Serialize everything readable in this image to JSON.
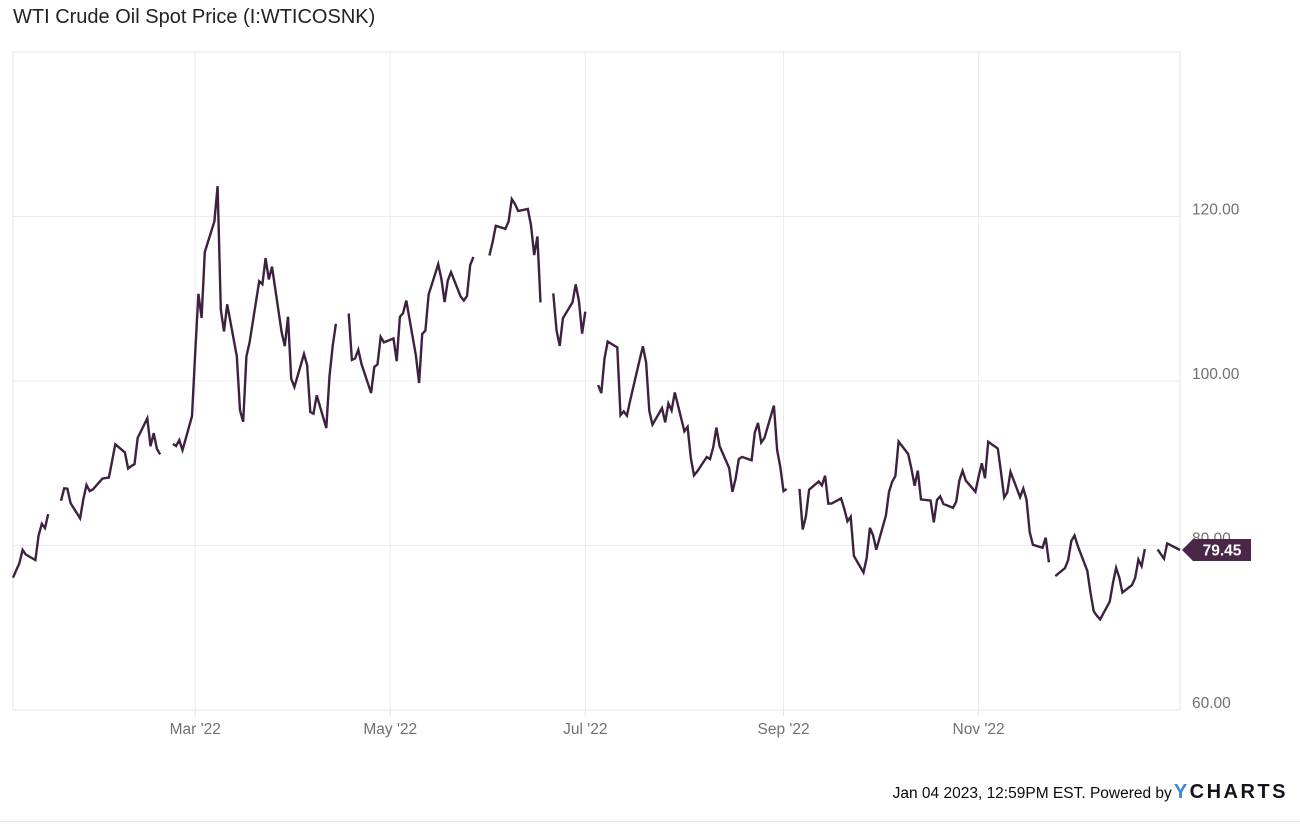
{
  "title": "WTI Crude Oil Spot Price (I:WTICOSNK)",
  "footer": {
    "timestamp": "Jan 04 2023, 12:59PM EST. ",
    "powered_by": "Powered by",
    "logo_y": "Y",
    "logo_charts": "CHARTS"
  },
  "colors": {
    "line": "#3e2140",
    "badge": "#4a2747",
    "badge_text": "#ffffff",
    "grid": "#ebebeb",
    "plot_border": "#e4e4e4",
    "axis_label": "#707070",
    "title_text": "#222222",
    "logo_blue": "#3d85e4",
    "logo_dark": "#14141e"
  },
  "chart_data": {
    "type": "line",
    "title": "WTI Crude Oil Spot Price (I:WTICOSNK)",
    "series_name": "WTI Crude Oil Spot Price",
    "xlabel": "",
    "ylabel": "",
    "x_start": "2022-01-03",
    "x_end": "2023-01-03",
    "ylim": [
      60,
      140
    ],
    "grid": true,
    "legend": "none",
    "last_price": 79.45,
    "last_price_label": "79.45",
    "yticks": [
      {
        "value": 120,
        "label": "120.00"
      },
      {
        "value": 100,
        "label": "100.00"
      },
      {
        "value": 80,
        "label": "80.00"
      },
      {
        "value": 60,
        "label": "60.00"
      }
    ],
    "xticks": [
      {
        "date": "2022-03-01",
        "label": "Mar '22"
      },
      {
        "date": "2022-05-01",
        "label": "May '22"
      },
      {
        "date": "2022-07-01",
        "label": "Jul '22"
      },
      {
        "date": "2022-09-01",
        "label": "Sep '22"
      },
      {
        "date": "2022-11-01",
        "label": "Nov '22"
      }
    ],
    "points": [
      [
        "2022-01-03",
        76.08
      ],
      [
        "2022-01-04",
        76.99
      ],
      [
        "2022-01-05",
        77.85
      ],
      [
        "2022-01-06",
        79.46
      ],
      [
        "2022-01-07",
        78.9
      ],
      [
        "2022-01-10",
        78.23
      ],
      [
        "2022-01-11",
        81.22
      ],
      [
        "2022-01-12",
        82.64
      ],
      [
        "2022-01-13",
        82.12
      ],
      [
        "2022-01-14",
        83.82
      ],
      [
        "2022-01-17",
        null
      ],
      [
        "2022-01-18",
        85.43
      ],
      [
        "2022-01-19",
        86.96
      ],
      [
        "2022-01-20",
        86.9
      ],
      [
        "2022-01-21",
        85.14
      ],
      [
        "2022-01-24",
        83.31
      ],
      [
        "2022-01-25",
        85.6
      ],
      [
        "2022-01-26",
        87.35
      ],
      [
        "2022-01-27",
        86.61
      ],
      [
        "2022-01-28",
        86.82
      ],
      [
        "2022-01-31",
        88.15
      ],
      [
        "2022-02-01",
        88.2
      ],
      [
        "2022-02-02",
        88.26
      ],
      [
        "2022-02-03",
        90.27
      ],
      [
        "2022-02-04",
        92.31
      ],
      [
        "2022-02-07",
        91.32
      ],
      [
        "2022-02-08",
        89.36
      ],
      [
        "2022-02-09",
        89.66
      ],
      [
        "2022-02-10",
        89.88
      ],
      [
        "2022-02-11",
        93.1
      ],
      [
        "2022-02-14",
        95.46
      ],
      [
        "2022-02-15",
        92.07
      ],
      [
        "2022-02-16",
        93.66
      ],
      [
        "2022-02-17",
        91.76
      ],
      [
        "2022-02-18",
        91.07
      ],
      [
        "2022-02-21",
        null
      ],
      [
        "2022-02-22",
        92.35
      ],
      [
        "2022-02-23",
        92.1
      ],
      [
        "2022-02-24",
        92.81
      ],
      [
        "2022-02-25",
        91.59
      ],
      [
        "2022-02-28",
        95.72
      ],
      [
        "2022-03-01",
        103.41
      ],
      [
        "2022-03-02",
        110.6
      ],
      [
        "2022-03-03",
        107.67
      ],
      [
        "2022-03-04",
        115.68
      ],
      [
        "2022-03-07",
        119.4
      ],
      [
        "2022-03-08",
        123.7
      ],
      [
        "2022-03-09",
        108.7
      ],
      [
        "2022-03-10",
        106.02
      ],
      [
        "2022-03-11",
        109.33
      ],
      [
        "2022-03-14",
        103.01
      ],
      [
        "2022-03-15",
        96.44
      ],
      [
        "2022-03-16",
        95.04
      ],
      [
        "2022-03-17",
        102.98
      ],
      [
        "2022-03-18",
        104.7
      ],
      [
        "2022-03-21",
        112.12
      ],
      [
        "2022-03-22",
        111.76
      ],
      [
        "2022-03-23",
        114.93
      ],
      [
        "2022-03-24",
        112.34
      ],
      [
        "2022-03-25",
        113.9
      ],
      [
        "2022-03-28",
        105.96
      ],
      [
        "2022-03-29",
        104.24
      ],
      [
        "2022-03-30",
        107.82
      ],
      [
        "2022-03-31",
        100.28
      ],
      [
        "2022-04-01",
        99.27
      ],
      [
        "2022-04-04",
        103.28
      ],
      [
        "2022-04-05",
        101.96
      ],
      [
        "2022-04-06",
        96.23
      ],
      [
        "2022-04-07",
        96.03
      ],
      [
        "2022-04-08",
        98.26
      ],
      [
        "2022-04-11",
        94.29
      ],
      [
        "2022-04-12",
        100.6
      ],
      [
        "2022-04-13",
        104.25
      ],
      [
        "2022-04-14",
        106.95
      ],
      [
        "2022-04-15",
        null
      ],
      [
        "2022-04-18",
        108.21
      ],
      [
        "2022-04-19",
        102.56
      ],
      [
        "2022-04-20",
        102.75
      ],
      [
        "2022-04-21",
        103.79
      ],
      [
        "2022-04-22",
        102.07
      ],
      [
        "2022-04-25",
        98.54
      ],
      [
        "2022-04-26",
        101.7
      ],
      [
        "2022-04-27",
        102.02
      ],
      [
        "2022-04-28",
        105.36
      ],
      [
        "2022-04-29",
        104.69
      ],
      [
        "2022-05-02",
        105.17
      ],
      [
        "2022-05-03",
        102.41
      ],
      [
        "2022-05-04",
        107.81
      ],
      [
        "2022-05-05",
        108.26
      ],
      [
        "2022-05-06",
        109.77
      ],
      [
        "2022-05-09",
        103.09
      ],
      [
        "2022-05-10",
        99.76
      ],
      [
        "2022-05-11",
        105.71
      ],
      [
        "2022-05-12",
        106.13
      ],
      [
        "2022-05-13",
        110.49
      ],
      [
        "2022-05-16",
        114.2
      ],
      [
        "2022-05-17",
        112.4
      ],
      [
        "2022-05-18",
        109.59
      ],
      [
        "2022-05-19",
        112.21
      ],
      [
        "2022-05-20",
        113.23
      ],
      [
        "2022-05-23",
        110.29
      ],
      [
        "2022-05-24",
        109.77
      ],
      [
        "2022-05-25",
        110.33
      ],
      [
        "2022-05-26",
        114.09
      ],
      [
        "2022-05-27",
        115.07
      ],
      [
        "2022-05-30",
        null
      ],
      [
        "2022-05-31",
        null
      ],
      [
        "2022-06-01",
        115.26
      ],
      [
        "2022-06-02",
        116.87
      ],
      [
        "2022-06-03",
        118.87
      ],
      [
        "2022-06-06",
        118.5
      ],
      [
        "2022-06-07",
        119.41
      ],
      [
        "2022-06-08",
        122.11
      ],
      [
        "2022-06-09",
        121.51
      ],
      [
        "2022-06-10",
        120.67
      ],
      [
        "2022-06-13",
        120.93
      ],
      [
        "2022-06-14",
        118.93
      ],
      [
        "2022-06-15",
        115.31
      ],
      [
        "2022-06-16",
        117.58
      ],
      [
        "2022-06-17",
        109.56
      ],
      [
        "2022-06-20",
        null
      ],
      [
        "2022-06-21",
        110.65
      ],
      [
        "2022-06-22",
        106.19
      ],
      [
        "2022-06-23",
        104.27
      ],
      [
        "2022-06-24",
        107.62
      ],
      [
        "2022-06-27",
        109.57
      ],
      [
        "2022-06-28",
        111.76
      ],
      [
        "2022-06-29",
        109.78
      ],
      [
        "2022-06-30",
        105.76
      ],
      [
        "2022-07-01",
        108.43
      ],
      [
        "2022-07-04",
        null
      ],
      [
        "2022-07-05",
        99.5
      ],
      [
        "2022-07-06",
        98.53
      ],
      [
        "2022-07-07",
        102.73
      ],
      [
        "2022-07-08",
        104.79
      ],
      [
        "2022-07-11",
        104.09
      ],
      [
        "2022-07-12",
        95.84
      ],
      [
        "2022-07-13",
        96.3
      ],
      [
        "2022-07-14",
        95.78
      ],
      [
        "2022-07-15",
        97.59
      ],
      [
        "2022-07-18",
        102.6
      ],
      [
        "2022-07-19",
        104.22
      ],
      [
        "2022-07-20",
        102.26
      ],
      [
        "2022-07-21",
        96.35
      ],
      [
        "2022-07-22",
        94.7
      ],
      [
        "2022-07-25",
        96.7
      ],
      [
        "2022-07-26",
        94.98
      ],
      [
        "2022-07-27",
        97.26
      ],
      [
        "2022-07-28",
        96.42
      ],
      [
        "2022-07-29",
        98.62
      ],
      [
        "2022-08-01",
        93.89
      ],
      [
        "2022-08-02",
        94.42
      ],
      [
        "2022-08-03",
        90.66
      ],
      [
        "2022-08-04",
        88.54
      ],
      [
        "2022-08-05",
        89.01
      ],
      [
        "2022-08-08",
        90.76
      ],
      [
        "2022-08-09",
        90.5
      ],
      [
        "2022-08-10",
        91.93
      ],
      [
        "2022-08-11",
        94.34
      ],
      [
        "2022-08-12",
        92.09
      ],
      [
        "2022-08-15",
        89.41
      ],
      [
        "2022-08-16",
        86.53
      ],
      [
        "2022-08-17",
        88.11
      ],
      [
        "2022-08-18",
        90.5
      ],
      [
        "2022-08-19",
        90.77
      ],
      [
        "2022-08-22",
        90.36
      ],
      [
        "2022-08-23",
        93.74
      ],
      [
        "2022-08-24",
        94.89
      ],
      [
        "2022-08-25",
        92.52
      ],
      [
        "2022-08-26",
        93.06
      ],
      [
        "2022-08-29",
        97.01
      ],
      [
        "2022-08-30",
        91.64
      ],
      [
        "2022-08-31",
        89.55
      ],
      [
        "2022-09-01",
        86.61
      ],
      [
        "2022-09-02",
        86.87
      ],
      [
        "2022-09-05",
        null
      ],
      [
        "2022-09-06",
        86.88
      ],
      [
        "2022-09-07",
        81.94
      ],
      [
        "2022-09-08",
        83.54
      ],
      [
        "2022-09-09",
        86.79
      ],
      [
        "2022-09-12",
        87.78
      ],
      [
        "2022-09-13",
        87.31
      ],
      [
        "2022-09-14",
        88.48
      ],
      [
        "2022-09-15",
        85.1
      ],
      [
        "2022-09-16",
        85.11
      ],
      [
        "2022-09-19",
        85.73
      ],
      [
        "2022-09-20",
        84.45
      ],
      [
        "2022-09-21",
        82.94
      ],
      [
        "2022-09-22",
        83.49
      ],
      [
        "2022-09-23",
        78.74
      ],
      [
        "2022-09-26",
        76.71
      ],
      [
        "2022-09-27",
        78.5
      ],
      [
        "2022-09-28",
        82.15
      ],
      [
        "2022-09-29",
        81.23
      ],
      [
        "2022-09-30",
        79.49
      ],
      [
        "2022-10-03",
        83.63
      ],
      [
        "2022-10-04",
        86.52
      ],
      [
        "2022-10-05",
        87.76
      ],
      [
        "2022-10-06",
        88.45
      ],
      [
        "2022-10-07",
        92.64
      ],
      [
        "2022-10-10",
        91.13
      ],
      [
        "2022-10-11",
        89.35
      ],
      [
        "2022-10-12",
        87.27
      ],
      [
        "2022-10-13",
        89.11
      ],
      [
        "2022-10-14",
        85.61
      ],
      [
        "2022-10-17",
        85.46
      ],
      [
        "2022-10-18",
        82.82
      ],
      [
        "2022-10-19",
        85.55
      ],
      [
        "2022-10-20",
        85.98
      ],
      [
        "2022-10-21",
        85.05
      ],
      [
        "2022-10-24",
        84.58
      ],
      [
        "2022-10-25",
        85.32
      ],
      [
        "2022-10-26",
        87.91
      ],
      [
        "2022-10-27",
        89.08
      ],
      [
        "2022-10-28",
        87.9
      ],
      [
        "2022-10-31",
        86.53
      ],
      [
        "2022-11-01",
        88.37
      ],
      [
        "2022-11-02",
        90.0
      ],
      [
        "2022-11-03",
        88.17
      ],
      [
        "2022-11-04",
        92.61
      ],
      [
        "2022-11-07",
        91.79
      ],
      [
        "2022-11-08",
        88.91
      ],
      [
        "2022-11-09",
        85.83
      ],
      [
        "2022-11-10",
        86.47
      ],
      [
        "2022-11-11",
        88.96
      ],
      [
        "2022-11-14",
        85.87
      ],
      [
        "2022-11-15",
        86.92
      ],
      [
        "2022-11-16",
        85.59
      ],
      [
        "2022-11-17",
        81.64
      ],
      [
        "2022-11-18",
        80.08
      ],
      [
        "2022-11-21",
        79.73
      ],
      [
        "2022-11-22",
        80.95
      ],
      [
        "2022-11-23",
        77.94
      ],
      [
        "2022-11-24",
        null
      ],
      [
        "2022-11-25",
        76.28
      ],
      [
        "2022-11-28",
        77.24
      ],
      [
        "2022-11-29",
        78.2
      ],
      [
        "2022-11-30",
        80.55
      ],
      [
        "2022-12-01",
        81.22
      ],
      [
        "2022-12-02",
        79.98
      ],
      [
        "2022-12-05",
        76.93
      ],
      [
        "2022-12-06",
        74.25
      ],
      [
        "2022-12-07",
        72.01
      ],
      [
        "2022-12-08",
        71.46
      ],
      [
        "2022-12-09",
        71.02
      ],
      [
        "2022-12-12",
        73.17
      ],
      [
        "2022-12-13",
        75.39
      ],
      [
        "2022-12-14",
        77.28
      ],
      [
        "2022-12-15",
        76.11
      ],
      [
        "2022-12-16",
        74.29
      ],
      [
        "2022-12-19",
        75.19
      ],
      [
        "2022-12-20",
        76.09
      ],
      [
        "2022-12-21",
        78.29
      ],
      [
        "2022-12-22",
        77.49
      ],
      [
        "2022-12-23",
        79.56
      ],
      [
        "2022-12-26",
        null
      ],
      [
        "2022-12-27",
        79.53
      ],
      [
        "2022-12-28",
        78.96
      ],
      [
        "2022-12-29",
        78.4
      ],
      [
        "2022-12-30",
        80.26
      ],
      [
        "2023-01-03",
        79.45
      ]
    ]
  }
}
